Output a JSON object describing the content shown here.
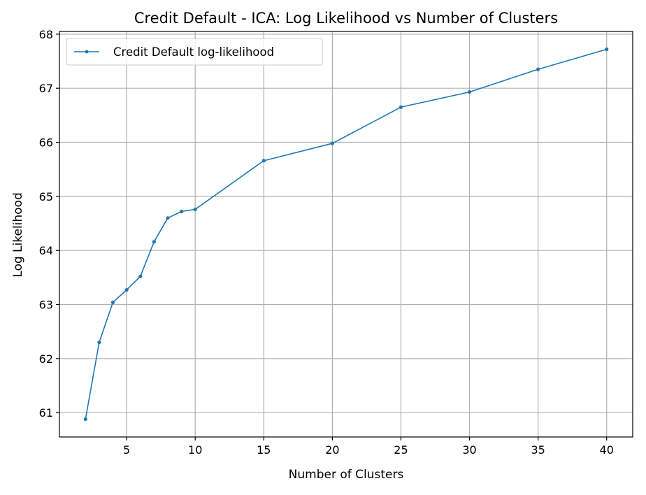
{
  "chart_data": {
    "type": "line",
    "title": "Credit Default - ICA: Log Likelihood vs Number of Clusters",
    "xlabel": "Number of Clusters",
    "ylabel": "Log Likelihood",
    "xlim": [
      0.1,
      41.9
    ],
    "ylim": [
      60.55,
      68.05
    ],
    "xticks": [
      5,
      10,
      15,
      20,
      25,
      30,
      35,
      40
    ],
    "yticks": [
      61,
      62,
      63,
      64,
      65,
      66,
      67,
      68
    ],
    "grid": true,
    "legend_position": "top-left",
    "series": [
      {
        "name": "Credit Default log-likelihood",
        "color": "#1f77b4",
        "marker": "dot",
        "x": [
          2,
          3,
          4,
          5,
          6,
          7,
          8,
          9,
          10,
          15,
          20,
          25,
          30,
          35,
          40
        ],
        "y": [
          60.88,
          62.3,
          63.04,
          63.27,
          63.52,
          64.16,
          64.6,
          64.72,
          64.76,
          65.66,
          65.98,
          66.65,
          66.93,
          67.35,
          67.72
        ]
      }
    ]
  }
}
